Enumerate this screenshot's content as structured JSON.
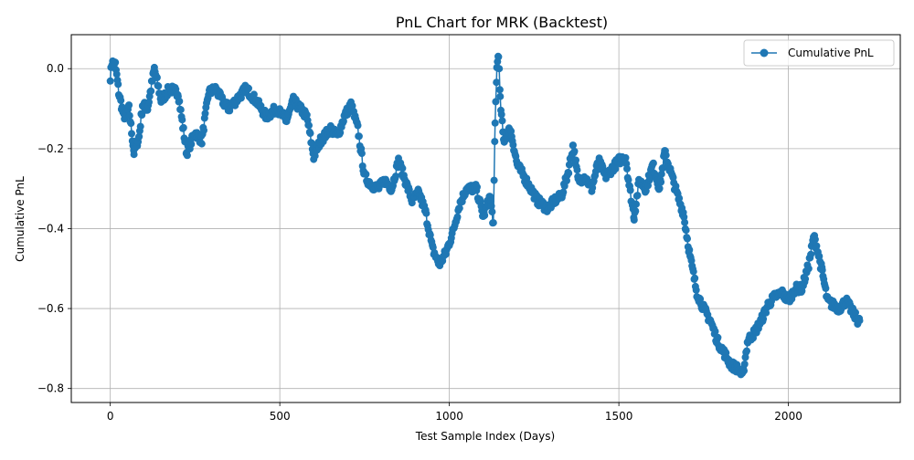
{
  "chart_data": {
    "type": "line",
    "title": "PnL Chart for MRK (Backtest)",
    "xlabel": "Test Sample Index (Days)",
    "ylabel": "Cumulative PnL",
    "xlim": [
      -115,
      2330
    ],
    "ylim": [
      -0.835,
      0.085
    ],
    "x_ticks": [
      0,
      500,
      1000,
      1500,
      2000
    ],
    "x_tick_labels": [
      "0",
      "500",
      "1000",
      "1500",
      "2000"
    ],
    "y_ticks": [
      -0.8,
      -0.6,
      -0.4,
      -0.2,
      0.0
    ],
    "y_tick_labels": [
      "−0.8",
      "−0.6",
      "−0.4",
      "−0.2",
      "0.0"
    ],
    "grid": true,
    "legend_position": "top-right",
    "series": [
      {
        "name": "Cumulative PnL",
        "color": "#1f77b4",
        "marker": "circle",
        "key_points": [
          [
            0,
            -0.02
          ],
          [
            5,
            0.015
          ],
          [
            15,
            0.01
          ],
          [
            25,
            -0.06
          ],
          [
            40,
            -0.12
          ],
          [
            55,
            -0.1
          ],
          [
            70,
            -0.21
          ],
          [
            85,
            -0.17
          ],
          [
            95,
            -0.09
          ],
          [
            110,
            -0.1
          ],
          [
            130,
            0.0
          ],
          [
            150,
            -0.08
          ],
          [
            175,
            -0.05
          ],
          [
            200,
            -0.06
          ],
          [
            225,
            -0.21
          ],
          [
            250,
            -0.16
          ],
          [
            270,
            -0.18
          ],
          [
            290,
            -0.06
          ],
          [
            310,
            -0.05
          ],
          [
            330,
            -0.08
          ],
          [
            350,
            -0.1
          ],
          [
            380,
            -0.07
          ],
          [
            400,
            -0.05
          ],
          [
            430,
            -0.08
          ],
          [
            460,
            -0.12
          ],
          [
            490,
            -0.1
          ],
          [
            520,
            -0.13
          ],
          [
            540,
            -0.08
          ],
          [
            560,
            -0.1
          ],
          [
            580,
            -0.12
          ],
          [
            600,
            -0.22
          ],
          [
            620,
            -0.18
          ],
          [
            650,
            -0.15
          ],
          [
            670,
            -0.17
          ],
          [
            690,
            -0.12
          ],
          [
            710,
            -0.09
          ],
          [
            730,
            -0.15
          ],
          [
            750,
            -0.27
          ],
          [
            770,
            -0.29
          ],
          [
            790,
            -0.3
          ],
          [
            810,
            -0.28
          ],
          [
            830,
            -0.3
          ],
          [
            850,
            -0.23
          ],
          [
            870,
            -0.28
          ],
          [
            890,
            -0.33
          ],
          [
            910,
            -0.31
          ],
          [
            930,
            -0.36
          ],
          [
            950,
            -0.45
          ],
          [
            970,
            -0.49
          ],
          [
            990,
            -0.46
          ],
          [
            1010,
            -0.41
          ],
          [
            1030,
            -0.34
          ],
          [
            1050,
            -0.3
          ],
          [
            1080,
            -0.3
          ],
          [
            1100,
            -0.37
          ],
          [
            1120,
            -0.32
          ],
          [
            1130,
            -0.39
          ],
          [
            1135,
            -0.14
          ],
          [
            1140,
            0.0
          ],
          [
            1145,
            0.04
          ],
          [
            1150,
            -0.08
          ],
          [
            1160,
            -0.18
          ],
          [
            1180,
            -0.15
          ],
          [
            1200,
            -0.24
          ],
          [
            1220,
            -0.27
          ],
          [
            1240,
            -0.3
          ],
          [
            1260,
            -0.33
          ],
          [
            1290,
            -0.35
          ],
          [
            1310,
            -0.33
          ],
          [
            1330,
            -0.32
          ],
          [
            1350,
            -0.26
          ],
          [
            1365,
            -0.19
          ],
          [
            1380,
            -0.28
          ],
          [
            1400,
            -0.27
          ],
          [
            1420,
            -0.3
          ],
          [
            1440,
            -0.23
          ],
          [
            1460,
            -0.27
          ],
          [
            1480,
            -0.25
          ],
          [
            1500,
            -0.23
          ],
          [
            1520,
            -0.22
          ],
          [
            1530,
            -0.29
          ],
          [
            1545,
            -0.37
          ],
          [
            1560,
            -0.28
          ],
          [
            1580,
            -0.3
          ],
          [
            1600,
            -0.24
          ],
          [
            1620,
            -0.3
          ],
          [
            1635,
            -0.21
          ],
          [
            1650,
            -0.25
          ],
          [
            1670,
            -0.31
          ],
          [
            1690,
            -0.36
          ],
          [
            1710,
            -0.47
          ],
          [
            1730,
            -0.56
          ],
          [
            1750,
            -0.6
          ],
          [
            1770,
            -0.63
          ],
          [
            1790,
            -0.68
          ],
          [
            1810,
            -0.71
          ],
          [
            1830,
            -0.74
          ],
          [
            1850,
            -0.75
          ],
          [
            1865,
            -0.77
          ],
          [
            1880,
            -0.68
          ],
          [
            1900,
            -0.66
          ],
          [
            1920,
            -0.63
          ],
          [
            1940,
            -0.59
          ],
          [
            1960,
            -0.57
          ],
          [
            1980,
            -0.56
          ],
          [
            2000,
            -0.58
          ],
          [
            2020,
            -0.55
          ],
          [
            2040,
            -0.55
          ],
          [
            2060,
            -0.49
          ],
          [
            2075,
            -0.42
          ],
          [
            2085,
            -0.45
          ],
          [
            2100,
            -0.51
          ],
          [
            2115,
            -0.58
          ],
          [
            2130,
            -0.59
          ],
          [
            2150,
            -0.6
          ],
          [
            2170,
            -0.58
          ],
          [
            2190,
            -0.61
          ],
          [
            2205,
            -0.63
          ],
          [
            2210,
            -0.63
          ]
        ]
      }
    ]
  }
}
